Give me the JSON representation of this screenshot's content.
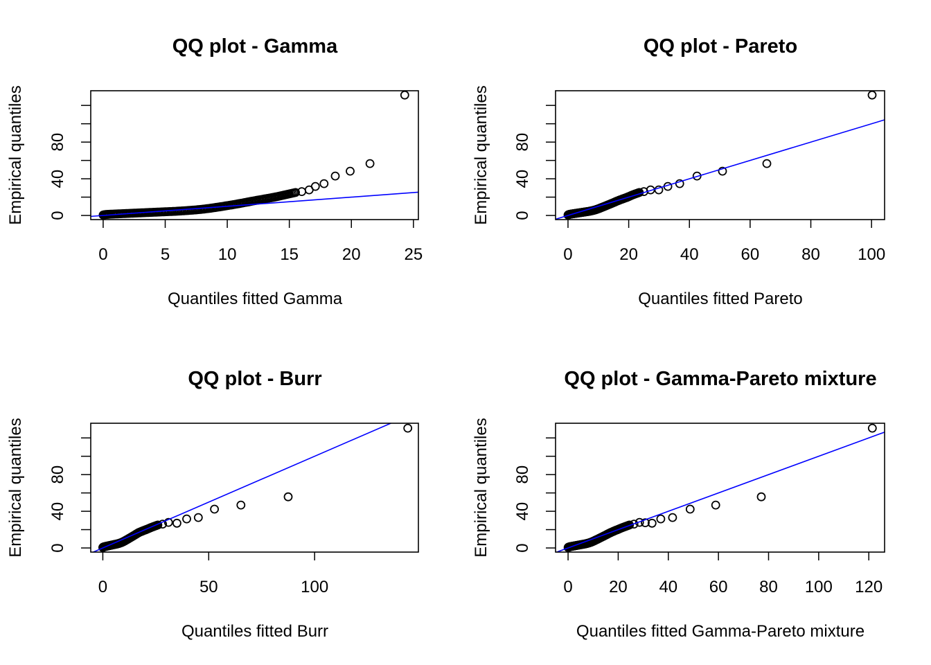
{
  "chart_data": [
    {
      "type": "scatter",
      "title": "QQ plot - Gamma",
      "xlabel": "Quantiles fitted Gamma",
      "ylabel": "Empirical quantiles",
      "xlim": [
        -1,
        25.4
      ],
      "ylim": [
        -4.5,
        136
      ],
      "xticks": [
        0,
        5,
        10,
        15,
        20,
        25
      ],
      "yticks": [
        0,
        20,
        40,
        60,
        80,
        100,
        120
      ],
      "ytick_labels": [
        "0",
        "",
        "40",
        "",
        "80",
        "",
        ""
      ],
      "reference_line": {
        "slope": 1,
        "intercept": 0,
        "color": "#0000ff"
      },
      "grid": false,
      "points": [
        [
          0,
          0.5
        ],
        [
          0.2,
          1
        ],
        [
          0.5,
          1.3
        ],
        [
          1,
          1.6
        ],
        [
          1.5,
          1.9
        ],
        [
          2,
          2.2
        ],
        [
          2.5,
          2.5
        ],
        [
          3,
          2.8
        ],
        [
          3.5,
          3.1
        ],
        [
          4,
          3.4
        ],
        [
          4.5,
          3.7
        ],
        [
          5,
          4
        ],
        [
          5.5,
          4.3
        ],
        [
          6,
          4.7
        ],
        [
          6.5,
          5.1
        ],
        [
          7,
          5.6
        ],
        [
          7.5,
          6.1
        ],
        [
          8,
          6.8
        ],
        [
          8.5,
          7.6
        ],
        [
          9,
          8.6
        ],
        [
          9.5,
          9.6
        ],
        [
          10,
          10.7
        ],
        [
          10.5,
          11.8
        ],
        [
          11,
          13
        ],
        [
          11.5,
          14.3
        ],
        [
          12,
          15.6
        ],
        [
          12.5,
          16.8
        ],
        [
          13,
          18
        ],
        [
          13.5,
          19.2
        ],
        [
          14,
          20.5
        ],
        [
          14.5,
          22
        ],
        [
          15,
          23.5
        ],
        [
          15.5,
          25
        ],
        [
          16,
          26
        ],
        [
          16.6,
          27.9
        ],
        [
          17.1,
          31.7
        ],
        [
          17.8,
          34.7
        ],
        [
          18.7,
          43
        ],
        [
          19.9,
          48.3
        ],
        [
          21.5,
          56.6
        ],
        [
          24.3,
          131.3
        ]
      ]
    },
    {
      "type": "scatter",
      "title": "QQ plot - Pareto",
      "xlabel": "Quantiles fitted Pareto",
      "ylabel": "Empirical quantiles",
      "xlim": [
        -4.1,
        104.3
      ],
      "ylim": [
        -4.5,
        136
      ],
      "xticks": [
        0,
        20,
        40,
        60,
        80,
        100
      ],
      "yticks": [
        0,
        20,
        40,
        60,
        80,
        100,
        120
      ],
      "ytick_labels": [
        "0",
        "",
        "40",
        "",
        "80",
        "",
        ""
      ],
      "reference_line": {
        "slope": 1,
        "intercept": 0,
        "color": "#0000ff"
      },
      "grid": false,
      "points": [
        [
          0,
          0.5
        ],
        [
          0.3,
          1
        ],
        [
          0.7,
          1.3
        ],
        [
          1.2,
          1.6
        ],
        [
          1.8,
          1.9
        ],
        [
          2.4,
          2.2
        ],
        [
          3,
          2.5
        ],
        [
          3.6,
          2.8
        ],
        [
          4.2,
          3.1
        ],
        [
          4.8,
          3.4
        ],
        [
          5.4,
          3.7
        ],
        [
          6,
          4
        ],
        [
          6.6,
          4.3
        ],
        [
          7.2,
          4.7
        ],
        [
          7.8,
          5.1
        ],
        [
          8.4,
          5.6
        ],
        [
          9,
          6.1
        ],
        [
          9.6,
          6.8
        ],
        [
          10.3,
          7.6
        ],
        [
          11,
          8.6
        ],
        [
          11.8,
          9.6
        ],
        [
          12.6,
          10.7
        ],
        [
          13.4,
          11.8
        ],
        [
          14.3,
          13
        ],
        [
          15.2,
          14.3
        ],
        [
          16.1,
          15.6
        ],
        [
          17,
          16.8
        ],
        [
          18,
          18
        ],
        [
          19,
          19.2
        ],
        [
          20,
          20.5
        ],
        [
          21,
          22
        ],
        [
          22.2,
          23.5
        ],
        [
          23.5,
          25
        ],
        [
          25,
          26
        ],
        [
          27.2,
          27.9
        ],
        [
          29.9,
          27.9
        ],
        [
          32.9,
          31.7
        ],
        [
          36.8,
          34.7
        ],
        [
          42.5,
          43
        ],
        [
          50.9,
          48.3
        ],
        [
          65.5,
          56.6
        ],
        [
          100.2,
          131.3
        ]
      ]
    },
    {
      "type": "scatter",
      "title": "QQ plot - Burr",
      "xlabel": "Quantiles fitted Burr",
      "ylabel": "Empirical quantiles",
      "xlim": [
        -5.7,
        149
      ],
      "ylim": [
        -4.5,
        136
      ],
      "xticks": [
        0,
        50,
        100
      ],
      "yticks": [
        0,
        20,
        40,
        60,
        80,
        100,
        120
      ],
      "ytick_labels": [
        "0",
        "",
        "40",
        "",
        "80",
        "",
        ""
      ],
      "reference_line": {
        "slope": 1,
        "intercept": 0,
        "color": "#0000ff"
      },
      "grid": false,
      "points": [
        [
          0,
          0.5
        ],
        [
          0.3,
          1
        ],
        [
          0.7,
          1.3
        ],
        [
          1.2,
          1.6
        ],
        [
          1.8,
          1.9
        ],
        [
          2.4,
          2.2
        ],
        [
          3,
          2.5
        ],
        [
          3.6,
          2.8
        ],
        [
          4.2,
          3.1
        ],
        [
          4.8,
          3.4
        ],
        [
          5.4,
          3.7
        ],
        [
          6,
          4
        ],
        [
          6.6,
          4.3
        ],
        [
          7.2,
          4.7
        ],
        [
          7.8,
          5.1
        ],
        [
          8.4,
          5.6
        ],
        [
          9,
          6.1
        ],
        [
          9.6,
          6.8
        ],
        [
          10.3,
          7.6
        ],
        [
          11,
          8.6
        ],
        [
          11.8,
          9.6
        ],
        [
          12.6,
          10.7
        ],
        [
          13.4,
          11.8
        ],
        [
          14.3,
          13
        ],
        [
          15.2,
          14.3
        ],
        [
          16.1,
          15.6
        ],
        [
          17,
          16.8
        ],
        [
          18.2,
          18
        ],
        [
          19.5,
          19.2
        ],
        [
          21,
          20.5
        ],
        [
          22.5,
          22
        ],
        [
          24.2,
          23.5
        ],
        [
          26,
          25
        ],
        [
          28.2,
          26
        ],
        [
          31,
          27.9
        ],
        [
          35,
          27
        ],
        [
          39.6,
          31.7
        ],
        [
          45.1,
          33.2
        ],
        [
          52.7,
          42.3
        ],
        [
          65.2,
          46.8
        ],
        [
          87.5,
          55.8
        ],
        [
          144,
          130.6
        ]
      ]
    },
    {
      "type": "scatter",
      "title": "QQ plot - Gamma-Pareto mixture",
      "xlabel": "Quantiles fitted Gamma-Pareto mixture",
      "ylabel": "Empirical quantiles",
      "xlim": [
        -5,
        126.3
      ],
      "ylim": [
        -4.5,
        136
      ],
      "xticks": [
        0,
        20,
        40,
        60,
        80,
        100,
        120
      ],
      "yticks": [
        0,
        20,
        40,
        60,
        80,
        100,
        120
      ],
      "ytick_labels": [
        "0",
        "",
        "40",
        "",
        "80",
        "",
        ""
      ],
      "reference_line": {
        "slope": 1,
        "intercept": 0,
        "color": "#0000ff"
      },
      "grid": false,
      "points": [
        [
          0,
          0.5
        ],
        [
          0.3,
          1
        ],
        [
          0.7,
          1.3
        ],
        [
          1.2,
          1.6
        ],
        [
          1.8,
          1.9
        ],
        [
          2.4,
          2.2
        ],
        [
          3,
          2.5
        ],
        [
          3.6,
          2.8
        ],
        [
          4.2,
          3.1
        ],
        [
          4.8,
          3.4
        ],
        [
          5.4,
          3.7
        ],
        [
          6,
          4
        ],
        [
          6.6,
          4.3
        ],
        [
          7.2,
          4.7
        ],
        [
          7.8,
          5.1
        ],
        [
          8.4,
          5.6
        ],
        [
          9,
          6.1
        ],
        [
          9.6,
          6.8
        ],
        [
          10.3,
          7.6
        ],
        [
          11,
          8.6
        ],
        [
          11.8,
          9.6
        ],
        [
          12.6,
          10.7
        ],
        [
          13.4,
          11.8
        ],
        [
          14.3,
          13
        ],
        [
          15.2,
          14.3
        ],
        [
          16.1,
          15.6
        ],
        [
          17,
          16.8
        ],
        [
          18,
          18
        ],
        [
          19,
          19.2
        ],
        [
          20.2,
          20.5
        ],
        [
          21.5,
          22
        ],
        [
          23,
          23.5
        ],
        [
          24.5,
          25
        ],
        [
          26.3,
          26
        ],
        [
          28.5,
          27.9
        ],
        [
          30.8,
          27.5
        ],
        [
          33.5,
          27
        ],
        [
          37,
          31.7
        ],
        [
          41.7,
          33.2
        ],
        [
          48.7,
          42.3
        ],
        [
          58.9,
          46.8
        ],
        [
          77.1,
          55.8
        ],
        [
          121.4,
          130.6
        ]
      ]
    }
  ]
}
